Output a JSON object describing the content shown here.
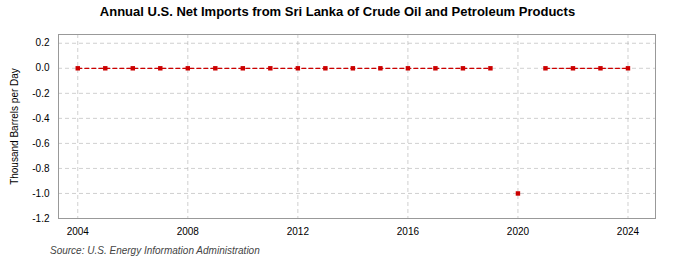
{
  "chart_data": {
    "type": "line",
    "title": "Annual U.S. Net Imports from Sri Lanka of Crude Oil and Petroleum Products",
    "ylabel": "Thousand Barrels per Day",
    "annotations": [
      "Source: U.S. Energy Information Administration"
    ],
    "x": [
      2004,
      2005,
      2006,
      2007,
      2008,
      2009,
      2010,
      2011,
      2012,
      2013,
      2014,
      2015,
      2016,
      2017,
      2018,
      2019,
      2020,
      2021,
      2022,
      2023,
      2024
    ],
    "series": [
      {
        "type": "line",
        "color": "#cc0000",
        "marker": "square",
        "line_style": "dashed",
        "values": [
          0,
          0,
          0,
          0,
          0,
          0,
          0,
          0,
          0,
          0,
          0,
          0,
          0,
          0,
          0,
          0,
          null,
          0,
          0,
          0,
          0
        ]
      },
      {
        "type": "scatter",
        "color": "#cc0000",
        "marker": "square",
        "values": [
          null,
          null,
          null,
          null,
          null,
          null,
          null,
          null,
          null,
          null,
          null,
          null,
          null,
          null,
          null,
          null,
          -1.0,
          null,
          null,
          null,
          null
        ]
      }
    ],
    "xlim": [
      2003.3,
      2025.0
    ],
    "xticks": [
      2004,
      2008,
      2012,
      2016,
      2020,
      2024
    ],
    "ylim": [
      -1.2,
      0.27
    ],
    "yticks": [
      0.2,
      {
        "value": 0,
        "label": "0.0"
      },
      -0.2,
      -0.4,
      -0.6,
      -0.8,
      {
        "value": -1,
        "label": "-1.0"
      },
      -1.2
    ],
    "grid": true,
    "legend": false
  }
}
